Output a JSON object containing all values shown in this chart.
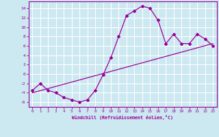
{
  "xlabel": "Windchill (Refroidissement éolien,°C)",
  "bg_color": "#cce8f0",
  "grid_color": "#ffffff",
  "line_color": "#990099",
  "ylim": [
    -7,
    15.5
  ],
  "xlim": [
    -0.5,
    23.5
  ],
  "yticks": [
    -6,
    -4,
    -2,
    0,
    2,
    4,
    6,
    8,
    10,
    12,
    14
  ],
  "xticks": [
    0,
    1,
    2,
    3,
    4,
    5,
    6,
    7,
    8,
    9,
    10,
    11,
    12,
    13,
    14,
    15,
    16,
    17,
    18,
    19,
    20,
    21,
    22,
    23
  ],
  "curve1_x": [
    0,
    1,
    2,
    3,
    4,
    5,
    6,
    7,
    8,
    9,
    10,
    11,
    12,
    13,
    14,
    15,
    16,
    17,
    18,
    19,
    20,
    21,
    22,
    23
  ],
  "curve1_y": [
    -3.5,
    -2.0,
    -3.5,
    -4.0,
    -5.0,
    -5.5,
    -6.0,
    -5.5,
    -3.5,
    -0.2,
    3.5,
    8.0,
    12.5,
    13.5,
    14.5,
    14.0,
    11.5,
    6.5,
    8.5,
    6.5,
    6.5,
    8.5,
    7.5,
    6.0
  ],
  "curve2_x": [
    0,
    23
  ],
  "curve2_y": [
    -4.0,
    6.5
  ]
}
